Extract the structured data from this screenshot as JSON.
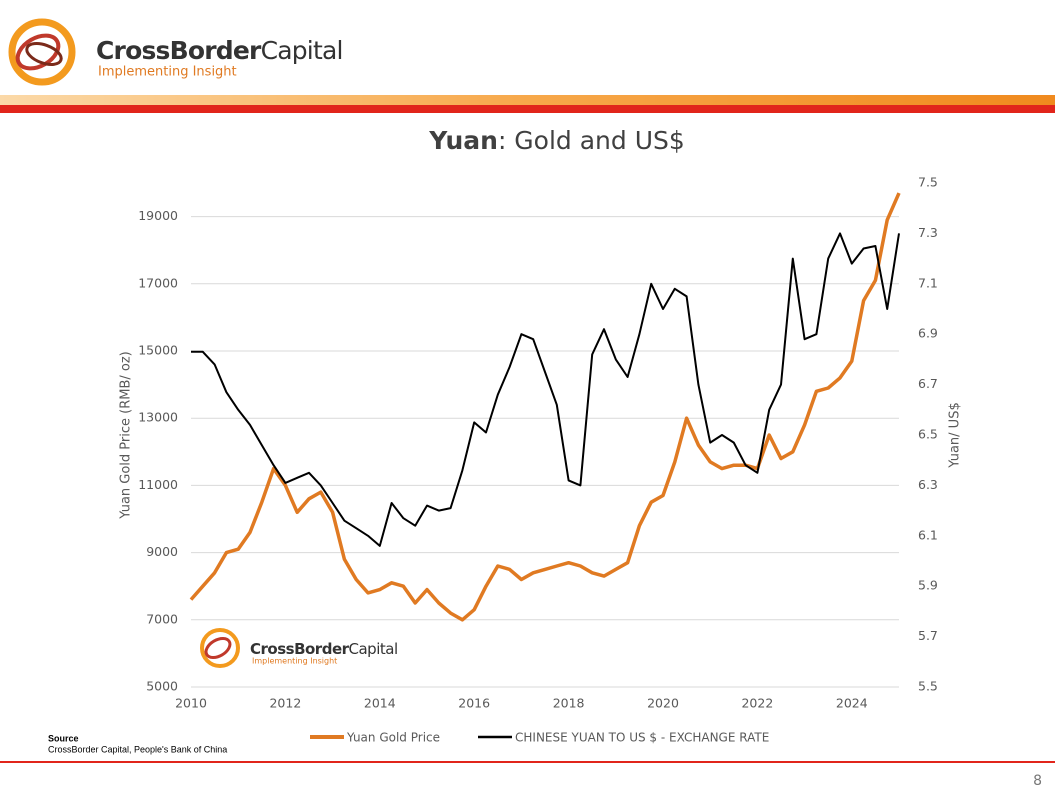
{
  "header": {
    "brand": "CrossBorder",
    "brand_rest": "Capital",
    "tagline": "Implementing Insight"
  },
  "source": {
    "label": "Source",
    "text": "CrossBorder Capital, People's Bank of China"
  },
  "page_number": "8",
  "watermark": {
    "brand": "CrossBorder",
    "brand_rest": "Capital",
    "tagline": "Implementing Insight"
  },
  "chart_data": {
    "type": "line",
    "title": {
      "bold": "Yuan",
      "rest": ": Gold and US$"
    },
    "y_label": "Yuan Gold Price (RMB/ oz)",
    "y2_label": "Yuan/ US$",
    "x": [
      2010,
      2010.25,
      2010.5,
      2010.75,
      2011,
      2011.25,
      2011.5,
      2011.75,
      2012,
      2012.25,
      2012.5,
      2012.75,
      2013,
      2013.25,
      2013.5,
      2013.75,
      2014,
      2014.25,
      2014.5,
      2014.75,
      2015,
      2015.25,
      2015.5,
      2015.75,
      2016,
      2016.25,
      2016.5,
      2016.75,
      2017,
      2017.25,
      2017.5,
      2017.75,
      2018,
      2018.25,
      2018.5,
      2018.75,
      2019,
      2019.25,
      2019.5,
      2019.75,
      2020,
      2020.25,
      2020.5,
      2020.75,
      2021,
      2021.25,
      2021.5,
      2021.75,
      2022,
      2022.25,
      2022.5,
      2022.75,
      2023,
      2023.25,
      2023.5,
      2023.75,
      2024,
      2024.25,
      2024.5,
      2024.75,
      2025
    ],
    "series": [
      {
        "name": "Yuan Gold Price",
        "color": "#e07a22",
        "values": [
          7600,
          8000,
          8400,
          9000,
          9100,
          9600,
          10500,
          11500,
          11000,
          10200,
          10600,
          10800,
          10200,
          8800,
          8200,
          7800,
          7900,
          8100,
          8000,
          7500,
          7900,
          7500,
          7200,
          7000,
          7300,
          8000,
          8600,
          8500,
          8200,
          8400,
          8500,
          8600,
          8700,
          8600,
          8400,
          8300,
          8500,
          8700,
          9800,
          10500,
          10700,
          11700,
          13000,
          12200,
          11700,
          11500,
          11600,
          11600,
          11500,
          12500,
          11800,
          12000,
          12800,
          13800,
          13900,
          14200,
          14700,
          16500,
          17100,
          18900,
          19700
        ]
      },
      {
        "name": "CHINESE YUAN TO US $ - EXCHANGE RATE",
        "color": "#000000",
        "axis": "y2",
        "values": [
          6.83,
          6.83,
          6.78,
          6.67,
          6.6,
          6.54,
          6.46,
          6.38,
          6.31,
          6.33,
          6.35,
          6.3,
          6.23,
          6.16,
          6.13,
          6.1,
          6.06,
          6.23,
          6.17,
          6.14,
          6.22,
          6.2,
          6.21,
          6.36,
          6.55,
          6.51,
          6.66,
          6.77,
          6.9,
          6.88,
          6.75,
          6.62,
          6.32,
          6.3,
          6.82,
          6.92,
          6.8,
          6.73,
          6.9,
          7.1,
          7,
          7.08,
          7.05,
          6.7,
          6.47,
          6.5,
          6.47,
          6.38,
          6.35,
          6.6,
          6.7,
          7.2,
          6.88,
          6.9,
          7.2,
          7.3,
          7.18,
          7.24,
          7.25,
          7,
          7.3
        ]
      }
    ],
    "xlim": [
      2010,
      2025
    ],
    "xticks": [
      2010,
      2012,
      2014,
      2016,
      2018,
      2020,
      2022,
      2024
    ],
    "ylim": [
      5000,
      20000
    ],
    "yticks": [
      5000,
      7000,
      9000,
      11000,
      13000,
      15000,
      17000,
      19000
    ],
    "y2lim": [
      5.5,
      7.5
    ],
    "y2ticks": [
      5.5,
      5.7,
      5.9,
      6.1,
      6.3,
      6.5,
      6.7,
      6.9,
      7.1,
      7.3,
      7.5
    ],
    "grid": true
  }
}
